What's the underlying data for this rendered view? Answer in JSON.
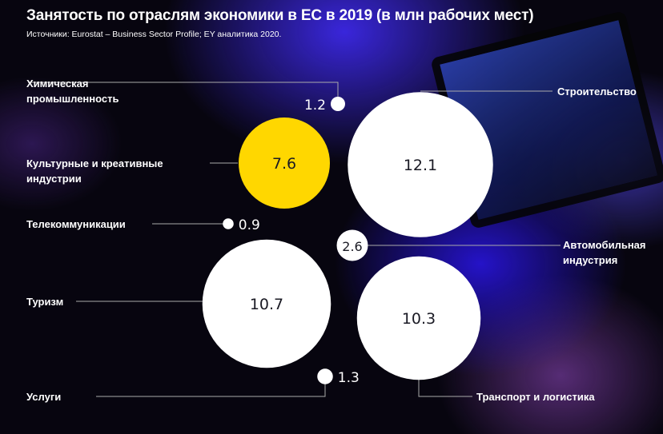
{
  "chart_data": {
    "type": "bubble",
    "title": "Занятость по отраслям экономики в ЕС в 2019 (в млн рабочих мест)",
    "subtitle": "Источники: Eurostat – Business Sector Profile; EY аналитика 2020.",
    "unit": "млн рабочих мест",
    "items": [
      {
        "label": "Химическая промышленность",
        "label_lines": [
          "Химическая",
          "промышленность"
        ],
        "value": 1.2,
        "value_text": "1.2",
        "color": "#ffffff"
      },
      {
        "label": "Строительство",
        "label_lines": [
          "Строительство"
        ],
        "value": 12.1,
        "value_text": "12.1",
        "color": "#ffffff"
      },
      {
        "label": "Культурные и креативные индустрии",
        "label_lines": [
          "Культурные и креативные",
          "индустрии"
        ],
        "value": 7.6,
        "value_text": "7.6",
        "color": "#ffd700"
      },
      {
        "label": "Телекоммуникации",
        "label_lines": [
          "Телекоммуникации"
        ],
        "value": 0.9,
        "value_text": "0.9",
        "color": "#ffffff"
      },
      {
        "label": "Автомобильная индустрия",
        "label_lines": [
          "Автомобильная",
          "индустрия"
        ],
        "value": 2.6,
        "value_text": "2.6",
        "color": "#ffffff"
      },
      {
        "label": "Туризм",
        "label_lines": [
          "Туризм"
        ],
        "value": 10.7,
        "value_text": "10.7",
        "color": "#ffffff"
      },
      {
        "label": "Транспорт и логистика",
        "label_lines": [
          "Транспорт и логистика"
        ],
        "value": 10.3,
        "value_text": "10.3",
        "color": "#ffffff"
      },
      {
        "label": "Услуги",
        "label_lines": [
          "Услуги"
        ],
        "value": 1.3,
        "value_text": "1.3",
        "color": "#ffffff"
      }
    ]
  }
}
